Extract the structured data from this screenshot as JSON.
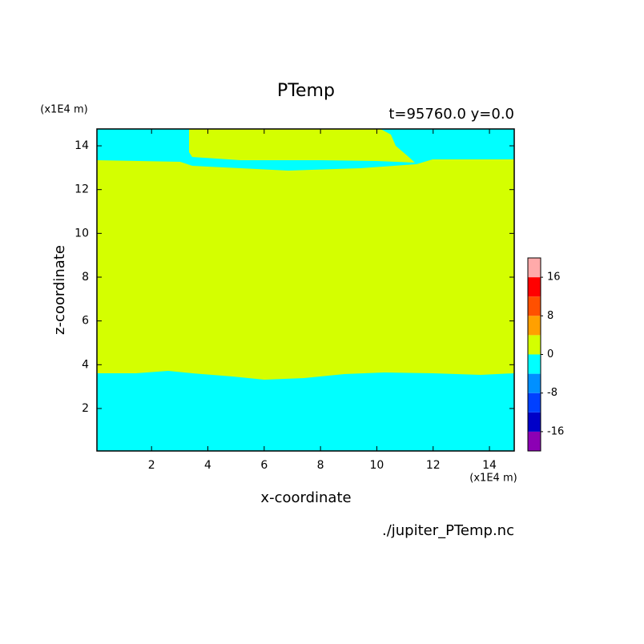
{
  "chart_data": {
    "type": "contour",
    "title": "PTemp",
    "subtitle": "t=95760.0 y=0.0",
    "x_label": "x-coordinate",
    "y_label": "z-coordinate",
    "x_unit": "(x1E4 m)",
    "y_unit": "(x1E4 m)",
    "file": "./jupiter_PTemp.nc",
    "xlim": [
      0.06,
      14.88
    ],
    "ylim": [
      0.06,
      14.77
    ],
    "xticks": [
      2,
      4,
      6,
      8,
      10,
      12,
      14
    ],
    "yticks": [
      2,
      4,
      6,
      8,
      10,
      12,
      14
    ],
    "levels": [
      -20,
      -16,
      -12,
      -8,
      -4,
      0,
      4,
      8,
      12,
      16,
      20
    ],
    "colors": [
      "#8c00b4",
      "#0000c8",
      "#0040ff",
      "#0090ff",
      "#00ffff",
      "#d4ff00",
      "#ffa000",
      "#ff5000",
      "#ff0000",
      "#ffaaaa"
    ],
    "colorbar_ticks": [
      -16,
      -8,
      0,
      8,
      16
    ]
  }
}
